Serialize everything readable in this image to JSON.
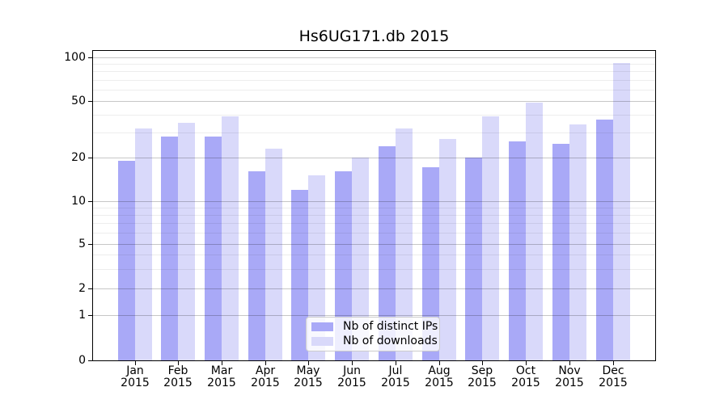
{
  "title": "Hs6UG171.db 2015",
  "chart_data": {
    "type": "bar",
    "categories": [
      "Jan",
      "Feb",
      "Mar",
      "Apr",
      "May",
      "Jun",
      "Jul",
      "Aug",
      "Sep",
      "Oct",
      "Nov",
      "Dec"
    ],
    "year_label": "2015",
    "series": [
      {
        "name": "Nb of distinct IPs",
        "color": "#a9a9f7",
        "values": [
          19,
          28,
          28,
          16,
          12,
          16,
          24,
          17,
          20,
          26,
          25,
          37
        ]
      },
      {
        "name": "Nb of downloads",
        "color": "#d9d9fa",
        "values": [
          32,
          35,
          39,
          23,
          15,
          20,
          32,
          27,
          39,
          49,
          34,
          91
        ]
      }
    ],
    "y_axis": {
      "scale": "symlog",
      "ticks": [
        0,
        1,
        2,
        5,
        10,
        20,
        50,
        100
      ],
      "minor_ticks": [
        3,
        4,
        6,
        7,
        8,
        9,
        30,
        40,
        60,
        70,
        80,
        90
      ],
      "range": [
        0,
        115
      ]
    },
    "x_axis": {
      "tick_label_lines": 2
    },
    "grid": {
      "horizontal_major": true,
      "horizontal_minor": true,
      "drawn_over_bars": true
    },
    "legend": {
      "position": "lower center"
    }
  }
}
